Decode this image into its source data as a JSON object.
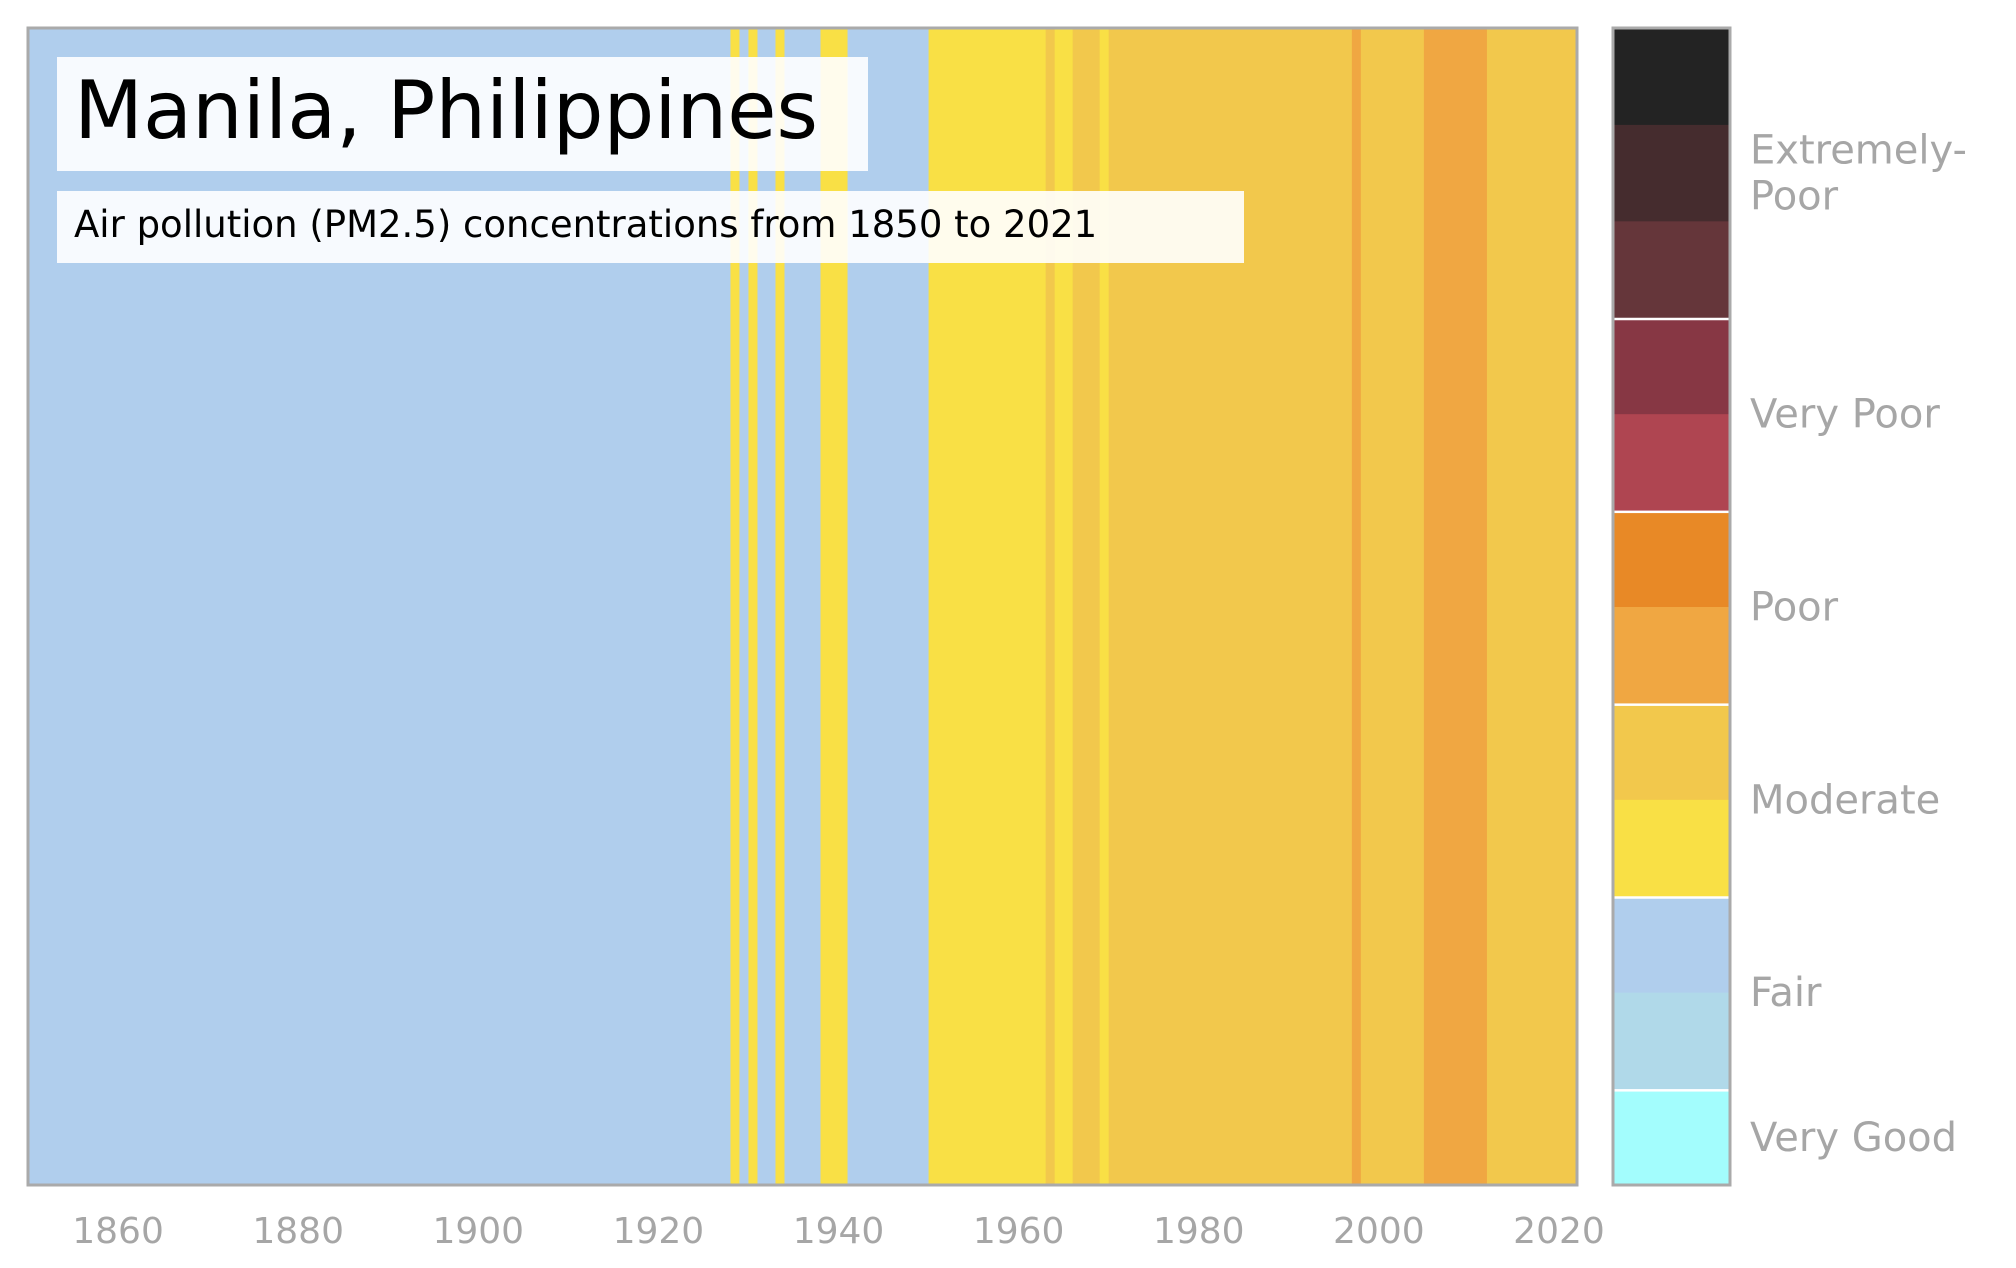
{
  "chart_data": {
    "type": "heatmap",
    "title": "Manila, Philippines",
    "subtitle": "Air pollution (PM2.5) concentrations from 1850 to 2021",
    "xlabel": "",
    "ylabel": "",
    "xlim": [
      1850,
      2022
    ],
    "x_ticks": [
      "1860",
      "1880",
      "1900",
      "1920",
      "1940",
      "1960",
      "1980",
      "2000",
      "2020"
    ],
    "grid": false,
    "legend_position": "right",
    "categories": [
      {
        "name": "Very Good",
        "colors": [
          "#a3fdfd"
        ]
      },
      {
        "name": "Fair",
        "colors": [
          "#b0d9e9",
          "#b0ceed"
        ]
      },
      {
        "name": "Moderate",
        "colors": [
          "#f9e045",
          "#f2c84c"
        ]
      },
      {
        "name": "Poor",
        "colors": [
          "#f0a742",
          "#e88926"
        ]
      },
      {
        "name": "Very Poor",
        "colors": [
          "#af4551",
          "#873744"
        ]
      },
      {
        "name": "Extremely-\nPoor",
        "colors": [
          "#65363a",
          "#452c2e",
          "#232323"
        ]
      }
    ],
    "year_bands": [
      {
        "start": 1850,
        "end": 1928,
        "level": "Fair",
        "color": "#b0ceed"
      },
      {
        "start": 1928,
        "end": 1929,
        "level": "Moderate",
        "color": "#f9e045"
      },
      {
        "start": 1929,
        "end": 1930,
        "level": "Fair",
        "color": "#b0ceed"
      },
      {
        "start": 1930,
        "end": 1931,
        "level": "Moderate",
        "color": "#f9e045"
      },
      {
        "start": 1931,
        "end": 1933,
        "level": "Fair",
        "color": "#b0ceed"
      },
      {
        "start": 1933,
        "end": 1934,
        "level": "Moderate",
        "color": "#f9e045"
      },
      {
        "start": 1934,
        "end": 1938,
        "level": "Fair",
        "color": "#b0ceed"
      },
      {
        "start": 1938,
        "end": 1941,
        "level": "Moderate",
        "color": "#f9e045"
      },
      {
        "start": 1941,
        "end": 1950,
        "level": "Fair",
        "color": "#b0ceed"
      },
      {
        "start": 1950,
        "end": 1963,
        "level": "Moderate",
        "color": "#f9e045"
      },
      {
        "start": 1963,
        "end": 1964,
        "level": "Moderate",
        "color": "#f2c84c"
      },
      {
        "start": 1964,
        "end": 1966,
        "level": "Moderate",
        "color": "#f9e045"
      },
      {
        "start": 1966,
        "end": 1969,
        "level": "Moderate",
        "color": "#f2c84c"
      },
      {
        "start": 1969,
        "end": 1970,
        "level": "Moderate",
        "color": "#f9e045"
      },
      {
        "start": 1970,
        "end": 1997,
        "level": "Moderate",
        "color": "#f2c84c"
      },
      {
        "start": 1997,
        "end": 1998,
        "level": "Poor",
        "color": "#f0a742"
      },
      {
        "start": 1998,
        "end": 2005,
        "level": "Moderate",
        "color": "#f2c84c"
      },
      {
        "start": 2005,
        "end": 2012,
        "level": "Poor",
        "color": "#f0a742"
      },
      {
        "start": 2012,
        "end": 2022,
        "level": "Moderate",
        "color": "#f2c84c"
      }
    ]
  }
}
